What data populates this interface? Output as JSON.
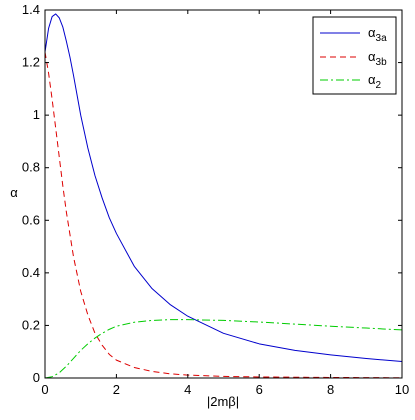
{
  "chart_data": {
    "type": "line",
    "title": "",
    "xlabel": "|2mβ|",
    "ylabel": "α",
    "xlim": [
      0,
      10
    ],
    "ylim": [
      0,
      1.4
    ],
    "x_ticks": [
      0,
      2,
      4,
      6,
      8,
      10
    ],
    "x_tick_labels": [
      "0",
      "2",
      "4",
      "6",
      "8",
      "10"
    ],
    "y_ticks": [
      0,
      0.2,
      0.4,
      0.6,
      0.8,
      1.0,
      1.2,
      1.4
    ],
    "y_tick_labels": [
      "0",
      "0.2",
      "0.4",
      "0.6",
      "0.8",
      "1",
      "1.2",
      "1.4"
    ],
    "grid": false,
    "legend_position": "top-right",
    "series": [
      {
        "name_base": "α",
        "name_sub": "3a",
        "color": "#0000cc",
        "style": "solid",
        "x": [
          0,
          0.1,
          0.2,
          0.3,
          0.4,
          0.5,
          0.6,
          0.7,
          0.8,
          1.0,
          1.2,
          1.4,
          1.6,
          1.8,
          2.0,
          2.5,
          3.0,
          3.5,
          4.0,
          5.0,
          6.0,
          7.0,
          8.0,
          9.0,
          10.0
        ],
        "y": [
          1.24,
          1.33,
          1.375,
          1.385,
          1.37,
          1.335,
          1.28,
          1.22,
          1.15,
          1.0,
          0.875,
          0.77,
          0.685,
          0.61,
          0.55,
          0.425,
          0.34,
          0.28,
          0.235,
          0.17,
          0.13,
          0.105,
          0.088,
          0.074,
          0.063
        ]
      },
      {
        "name_base": "α",
        "name_sub": "3b",
        "color": "#dd0000",
        "style": "dashed",
        "x": [
          0,
          0.1,
          0.2,
          0.3,
          0.4,
          0.5,
          0.6,
          0.8,
          1.0,
          1.2,
          1.4,
          1.6,
          1.8,
          2.0,
          2.5,
          3.0,
          3.5,
          4.0,
          5.0,
          6.0,
          7.0,
          8.0,
          9.0,
          10.0
        ],
        "y": [
          1.24,
          1.16,
          1.06,
          0.95,
          0.84,
          0.73,
          0.63,
          0.46,
          0.33,
          0.24,
          0.17,
          0.125,
          0.09,
          0.068,
          0.04,
          0.025,
          0.016,
          0.011,
          0.006,
          0.004,
          0.003,
          0.002,
          0.0015,
          0.001
        ]
      },
      {
        "name_base": "α",
        "name_sub": "2",
        "color": "#00cc00",
        "style": "dashdot",
        "x": [
          0,
          0.2,
          0.4,
          0.6,
          0.8,
          1.0,
          1.2,
          1.4,
          1.6,
          1.8,
          2.0,
          2.5,
          3.0,
          3.5,
          4.0,
          5.0,
          6.0,
          7.0,
          8.0,
          9.0,
          10.0
        ],
        "y": [
          0,
          0.005,
          0.02,
          0.045,
          0.075,
          0.105,
          0.13,
          0.152,
          0.17,
          0.185,
          0.197,
          0.212,
          0.219,
          0.222,
          0.222,
          0.219,
          0.213,
          0.205,
          0.197,
          0.19,
          0.183
        ]
      }
    ]
  }
}
